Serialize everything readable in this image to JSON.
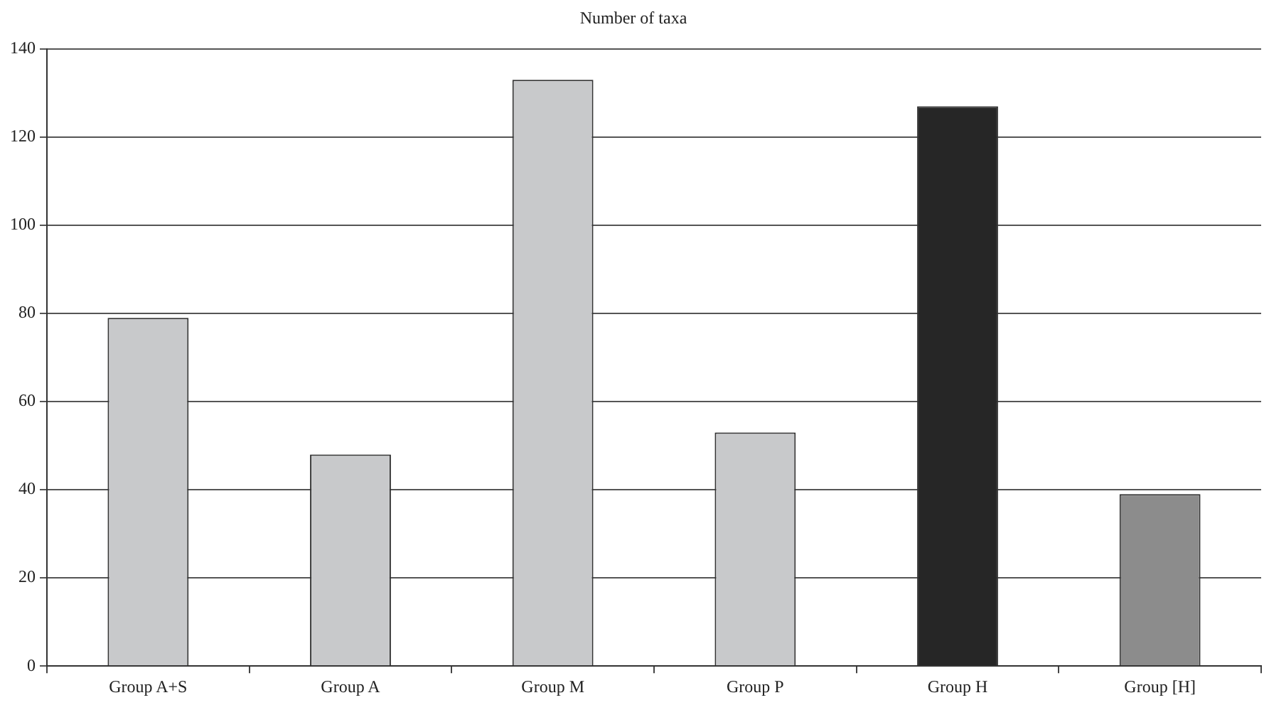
{
  "chart_data": {
    "type": "bar",
    "title": "Number of taxa",
    "categories": [
      "Group A+S",
      "Group A",
      "Group M",
      "Group P",
      "Group H",
      "Group [H]"
    ],
    "values": [
      79,
      48,
      133,
      53,
      127,
      39
    ],
    "colors": [
      "#c8c9cb",
      "#c8c9cb",
      "#c8c9cb",
      "#c8c9cb",
      "#262626",
      "#8c8c8c"
    ],
    "ylim": [
      0,
      140
    ],
    "yticks": [
      0,
      20,
      40,
      60,
      80,
      100,
      120,
      140
    ],
    "grid": "y",
    "legend": false
  }
}
